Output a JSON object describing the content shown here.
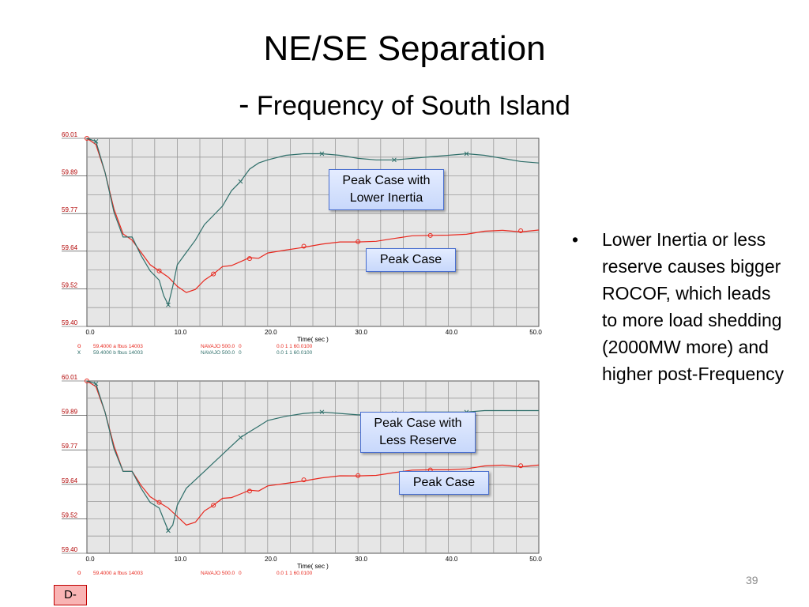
{
  "slide": {
    "title": "NE/SE Separation",
    "subtitle_dash": "-",
    "subtitle": "Frequency of South Island",
    "bullet_symbol": "•",
    "bullet": "Lower Inertia or less reserve causes bigger ROCOF, which leads to more load shedding (2000MW more) and higher post-Frequency",
    "page_number": "39",
    "badge": "D-"
  },
  "colors": {
    "series_a": "#e8281e",
    "series_b": "#2f6f6a",
    "grid": "#9a9a9a",
    "plot_bg": "#e6e6e6",
    "callout_border": "#4a6fcf"
  },
  "legend_rows": [
    {
      "marker": "o",
      "cols": [
        "59.4000  a  fbus    14003",
        "NAVAJO 500.0",
        "0",
        "0.0   1   1   60.0100"
      ]
    },
    {
      "marker": "x",
      "cols": [
        "59.4000  b  fbus    14003",
        "NAVAJO 500.0",
        "0",
        "0.0   1   1   60.0100"
      ]
    }
  ],
  "chart_data": [
    {
      "type": "line",
      "xlabel": "Time( sec )",
      "xlim": [
        0,
        50
      ],
      "ylim": [
        59.4,
        60.01
      ],
      "xticks": [
        "0.0",
        "10.0",
        "20.0",
        "30.0",
        "40.0",
        "50.0"
      ],
      "yticks": [
        "60.01",
        "59.89",
        "59.77",
        "59.64",
        "59.52",
        "59.40"
      ],
      "callouts": [
        "Peak Case with Lower Inertia",
        "Peak Case"
      ],
      "series": [
        {
          "marker": "o",
          "color": "#e8281e",
          "x": [
            0,
            1,
            2,
            3,
            4,
            5,
            6,
            7,
            8,
            9,
            10,
            11,
            12,
            13,
            14,
            15,
            16,
            17,
            18,
            19,
            20,
            22,
            24,
            26,
            28,
            30,
            32,
            34,
            36,
            38,
            40,
            42,
            44,
            46,
            48,
            50
          ],
          "y": [
            60.01,
            59.99,
            59.9,
            59.78,
            59.7,
            59.68,
            59.64,
            59.6,
            59.58,
            59.56,
            59.53,
            59.51,
            59.52,
            59.55,
            59.57,
            59.59,
            59.6,
            59.61,
            59.62,
            59.625,
            59.635,
            59.65,
            59.66,
            59.665,
            59.67,
            59.675,
            59.68,
            59.685,
            59.69,
            59.695,
            59.7,
            59.7,
            59.705,
            59.71,
            59.71,
            59.715
          ]
        },
        {
          "marker": "x",
          "color": "#2f6f6a",
          "x": [
            0,
            1,
            2,
            3,
            4,
            5,
            6,
            7,
            8,
            8.5,
            9,
            9.5,
            10,
            11,
            12,
            13,
            14,
            15,
            16,
            17,
            18,
            19,
            20,
            22,
            24,
            26,
            28,
            30,
            32,
            34,
            36,
            38,
            40,
            42,
            44,
            46,
            48,
            50
          ],
          "y": [
            60.01,
            60.0,
            59.9,
            59.77,
            59.69,
            59.69,
            59.63,
            59.58,
            59.55,
            59.5,
            59.47,
            59.53,
            59.6,
            59.64,
            59.68,
            59.73,
            59.76,
            59.79,
            59.84,
            59.87,
            59.91,
            59.93,
            59.94,
            59.955,
            59.96,
            59.96,
            59.955,
            59.945,
            59.94,
            59.94,
            59.945,
            59.95,
            59.955,
            59.96,
            59.955,
            59.945,
            59.935,
            59.93
          ]
        }
      ]
    },
    {
      "type": "line",
      "xlabel": "Time( sec )",
      "xlim": [
        0,
        50
      ],
      "ylim": [
        59.4,
        60.01
      ],
      "xticks": [
        "0.0",
        "10.0",
        "20.0",
        "30.0",
        "40.0",
        "50.0"
      ],
      "yticks": [
        "60.01",
        "59.89",
        "59.77",
        "59.64",
        "59.52",
        "59.40"
      ],
      "callouts": [
        "Peak Case with Less Reserve",
        "Peak Case"
      ],
      "series": [
        {
          "marker": "o",
          "color": "#e8281e",
          "x": [
            0,
            1,
            2,
            3,
            4,
            5,
            6,
            7,
            8,
            9,
            10,
            11,
            12,
            13,
            14,
            15,
            16,
            17,
            18,
            19,
            20,
            22,
            24,
            26,
            28,
            30,
            32,
            34,
            36,
            38,
            40,
            42,
            44,
            46,
            48,
            50
          ],
          "y": [
            60.01,
            59.99,
            59.9,
            59.78,
            59.69,
            59.69,
            59.64,
            59.6,
            59.58,
            59.56,
            59.53,
            59.5,
            59.51,
            59.55,
            59.57,
            59.59,
            59.6,
            59.61,
            59.62,
            59.625,
            59.635,
            59.65,
            59.66,
            59.665,
            59.67,
            59.675,
            59.68,
            59.685,
            59.69,
            59.695,
            59.7,
            59.7,
            59.705,
            59.71,
            59.71,
            59.715
          ]
        },
        {
          "marker": "x",
          "color": "#2f6f6a",
          "x": [
            0,
            1,
            2,
            3,
            4,
            5,
            6,
            7,
            8,
            8.5,
            9,
            9.5,
            10,
            11,
            12,
            13,
            14,
            15,
            16,
            17,
            18,
            19,
            20,
            22,
            24,
            26,
            28,
            30,
            32,
            34,
            36,
            38,
            40,
            42,
            44,
            46,
            48,
            50
          ],
          "y": [
            60.01,
            60.0,
            59.9,
            59.77,
            59.69,
            59.69,
            59.63,
            59.58,
            59.56,
            59.52,
            59.48,
            59.5,
            59.57,
            59.63,
            59.66,
            59.69,
            59.72,
            59.75,
            59.78,
            59.81,
            59.83,
            59.85,
            59.87,
            59.885,
            59.895,
            59.9,
            59.895,
            59.89,
            59.89,
            59.895,
            59.9,
            59.9,
            59.9,
            59.9,
            59.905,
            59.905,
            59.905,
            59.905
          ]
        }
      ]
    }
  ]
}
